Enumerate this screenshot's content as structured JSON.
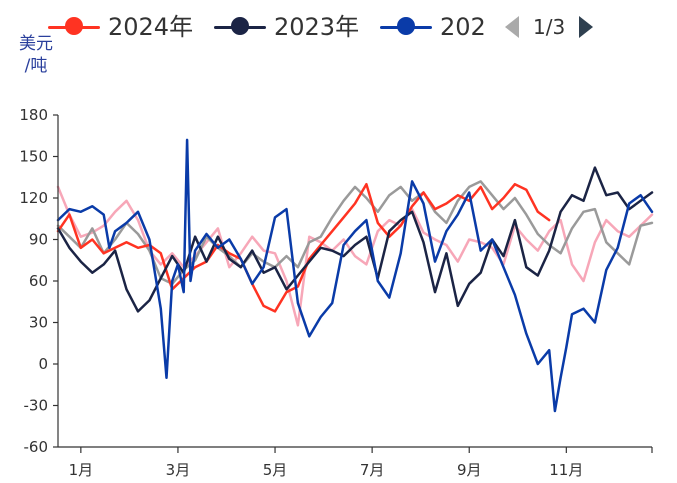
{
  "legend": {
    "items": [
      {
        "label": "2024年",
        "color": "#ff3322"
      },
      {
        "label": "2023年",
        "color": "#1b2445"
      },
      {
        "label": "202",
        "color": "#0a3ba8"
      }
    ],
    "pager": "1/3"
  },
  "axis": {
    "unit_label": "美元\n/吨"
  },
  "colors": {
    "2024": "#ff3322",
    "2023": "#1b2445",
    "2022": "#0a3ba8",
    "gray_series": "#9a9a9a",
    "pink_series": "#f7a7b8",
    "axis": "#333333"
  },
  "chart_data": {
    "type": "line",
    "ylim": [
      -60,
      180
    ],
    "yticks": [
      180,
      150,
      120,
      90,
      60,
      30,
      0,
      -30,
      -60
    ],
    "xlim": [
      0,
      52
    ],
    "xticks": [
      {
        "x": 2,
        "label": "1月"
      },
      {
        "x": 10.5,
        "label": "3月"
      },
      {
        "x": 19,
        "label": "5月"
      },
      {
        "x": 27.5,
        "label": "7月"
      },
      {
        "x": 36,
        "label": "9月"
      },
      {
        "x": 44.5,
        "label": "11月"
      }
    ],
    "series": [
      {
        "name": "",
        "key": "pink",
        "color": "#f7a7b8",
        "width": 2.5,
        "x": [
          0,
          1,
          2,
          3,
          4,
          5,
          6,
          7,
          8,
          9,
          10,
          11,
          12,
          13,
          14,
          15,
          16,
          17,
          18,
          19,
          20,
          21,
          22,
          23,
          24,
          25,
          26,
          27,
          28,
          29,
          30,
          31,
          32,
          33,
          34,
          35,
          36,
          37,
          38,
          39,
          40,
          41,
          42,
          43,
          44,
          45,
          46,
          47,
          48,
          49,
          50,
          51,
          52
        ],
        "y": [
          128,
          108,
          92,
          95,
          100,
          110,
          118,
          104,
          82,
          72,
          80,
          70,
          78,
          88,
          98,
          70,
          80,
          92,
          82,
          80,
          60,
          28,
          92,
          88,
          82,
          90,
          78,
          72,
          96,
          104,
          100,
          112,
          95,
          90,
          86,
          74,
          90,
          88,
          84,
          72,
          100,
          90,
          82,
          96,
          104,
          72,
          60,
          88,
          104,
          96,
          92,
          100,
          108
        ]
      },
      {
        "name": "",
        "key": "gray",
        "color": "#9a9a9a",
        "width": 2.5,
        "x": [
          0,
          1,
          2,
          3,
          4,
          5,
          6,
          7,
          8,
          9,
          10,
          11,
          12,
          13,
          14,
          15,
          16,
          17,
          18,
          19,
          20,
          21,
          22,
          23,
          24,
          25,
          26,
          27,
          28,
          29,
          30,
          31,
          32,
          33,
          34,
          35,
          36,
          37,
          38,
          39,
          40,
          41,
          42,
          43,
          44,
          45,
          46,
          47,
          48,
          49,
          50,
          51,
          52
        ],
        "y": [
          100,
          92,
          84,
          98,
          80,
          90,
          102,
          94,
          82,
          62,
          58,
          68,
          75,
          92,
          84,
          78,
          70,
          80,
          74,
          70,
          78,
          70,
          88,
          92,
          106,
          118,
          128,
          120,
          110,
          122,
          128,
          118,
          124,
          110,
          102,
          118,
          128,
          132,
          122,
          112,
          120,
          108,
          94,
          86,
          80,
          98,
          110,
          112,
          88,
          80,
          72,
          100,
          102
        ]
      },
      {
        "name": "2024年",
        "key": "y2024",
        "color": "#ff3322",
        "width": 2.5,
        "x": [
          0,
          1,
          2,
          3,
          4,
          5,
          6,
          7,
          8,
          9,
          10,
          11,
          12,
          13,
          14,
          15,
          16,
          17,
          18,
          19,
          20,
          21,
          22,
          23,
          24,
          25,
          26,
          27,
          28,
          29,
          30,
          31,
          32,
          33,
          34,
          35,
          36,
          37,
          38,
          39,
          40,
          41,
          42,
          43
        ],
        "y": [
          96,
          108,
          84,
          90,
          80,
          84,
          88,
          84,
          86,
          80,
          54,
          62,
          70,
          74,
          86,
          80,
          76,
          58,
          42,
          38,
          52,
          56,
          76,
          86,
          96,
          106,
          116,
          130,
          102,
          92,
          100,
          114,
          124,
          112,
          116,
          122,
          118,
          128,
          112,
          120,
          130,
          126,
          110,
          104
        ]
      },
      {
        "name": "2023年",
        "key": "y2023",
        "color": "#1b2445",
        "width": 2.5,
        "x": [
          0,
          1,
          2,
          3,
          4,
          5,
          6,
          7,
          8,
          9,
          10,
          11,
          12,
          13,
          14,
          15,
          16,
          17,
          18,
          19,
          20,
          21,
          22,
          23,
          24,
          25,
          26,
          27,
          28,
          29,
          30,
          31,
          32,
          33,
          34,
          35,
          36,
          37,
          38,
          39,
          40,
          41,
          42,
          43,
          44,
          45,
          46,
          47,
          48,
          49,
          50,
          51,
          52
        ],
        "y": [
          98,
          84,
          74,
          66,
          72,
          82,
          54,
          38,
          46,
          62,
          78,
          66,
          92,
          74,
          92,
          76,
          70,
          82,
          66,
          70,
          54,
          64,
          74,
          84,
          82,
          78,
          86,
          92,
          62,
          96,
          104,
          110,
          88,
          52,
          80,
          42,
          58,
          66,
          90,
          78,
          104,
          70,
          64,
          82,
          110,
          122,
          118,
          142,
          122,
          124,
          112,
          118,
          124
        ]
      },
      {
        "name": "202",
        "key": "y2022",
        "color": "#0a3ba8",
        "width": 2.5,
        "x": [
          0,
          1,
          2,
          3,
          4,
          4.5,
          5,
          6,
          7,
          8,
          9,
          9.5,
          10,
          10.5,
          11,
          11.3,
          11.6,
          12,
          13,
          14,
          15,
          16,
          17,
          18,
          19,
          20,
          21,
          22,
          23,
          24,
          25,
          26,
          27,
          28,
          29,
          30,
          31,
          32,
          33,
          34,
          35,
          36,
          37,
          38,
          39,
          40,
          41,
          42,
          43,
          43.5,
          44,
          44.5,
          45,
          46,
          47,
          48,
          49,
          50,
          51,
          52
        ],
        "y": [
          104,
          112,
          110,
          114,
          108,
          84,
          96,
          102,
          110,
          90,
          40,
          -10,
          60,
          72,
          52,
          162,
          60,
          82,
          94,
          84,
          90,
          76,
          58,
          70,
          106,
          112,
          44,
          20,
          34,
          44,
          86,
          96,
          104,
          60,
          48,
          80,
          132,
          116,
          74,
          96,
          108,
          124,
          82,
          90,
          70,
          50,
          22,
          0,
          10,
          -34,
          -10,
          12,
          36,
          40,
          30,
          68,
          84,
          116,
          122,
          110
        ]
      }
    ]
  }
}
